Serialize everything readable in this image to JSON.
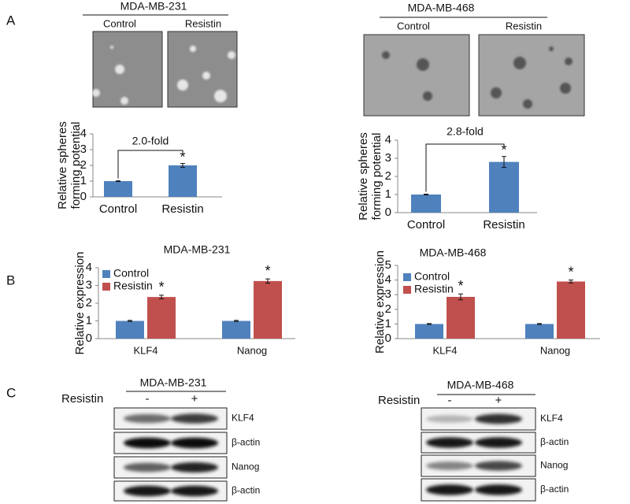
{
  "panel_letters": [
    "A",
    "B",
    "C"
  ],
  "panel_a": [
    {
      "title": "MDA-MB-231",
      "columns": [
        "Control",
        "Resistin"
      ]
    },
    {
      "title": "MDA-MB-468",
      "columns": [
        "Control",
        "Resistin"
      ]
    }
  ],
  "chart_data": [
    {
      "type": "bar",
      "y_label": [
        "Relative spheres",
        "forming potential"
      ],
      "categories": [
        "Control",
        "Resistin"
      ],
      "values": [
        1,
        2.0
      ],
      "errors": [
        0.02,
        0.12
      ],
      "color": "#4f81bd",
      "ylim": [
        0,
        4
      ],
      "yticks": [
        0,
        1,
        2,
        3,
        4
      ],
      "grid": false,
      "fold_label": "2.0-fold",
      "significance": "*"
    },
    {
      "type": "bar",
      "y_label": [
        "Relative spheres",
        "forming potential"
      ],
      "categories": [
        "Control",
        "Resistin"
      ],
      "values": [
        1,
        2.8
      ],
      "errors": [
        0.02,
        0.3
      ],
      "color": "#4f81bd",
      "ylim": [
        0,
        4
      ],
      "yticks": [
        0,
        1,
        2,
        3,
        4
      ],
      "grid": false,
      "fold_label": "2.8-fold",
      "significance": "*"
    },
    {
      "type": "grouped_bar",
      "title": "MDA-MB-231",
      "y_label": [
        "Relative expression"
      ],
      "categories": [
        "KLF4",
        "Nanog"
      ],
      "series": [
        {
          "name": "Control",
          "color": "#4f81bd",
          "values": [
            1,
            1
          ],
          "errors": [
            0.03,
            0.03
          ]
        },
        {
          "name": "Resistin",
          "color": "#c0504d",
          "values": [
            2.35,
            3.25
          ],
          "errors": [
            0.1,
            0.12
          ],
          "significance": [
            "*",
            "*"
          ]
        }
      ],
      "ylim": [
        0,
        4
      ],
      "yticks": [
        0,
        1,
        2,
        3,
        4
      ],
      "grid": false,
      "legend": "top-left"
    },
    {
      "type": "grouped_bar",
      "title": "MDA-MB-468",
      "y_label": [
        "Relative expression"
      ],
      "categories": [
        "KLF4",
        "Nanog"
      ],
      "series": [
        {
          "name": "Control",
          "color": "#4f81bd",
          "values": [
            1,
            1
          ],
          "errors": [
            0.03,
            0.03
          ]
        },
        {
          "name": "Resistin",
          "color": "#c0504d",
          "values": [
            2.85,
            3.9
          ],
          "errors": [
            0.2,
            0.1
          ],
          "significance": [
            "*",
            "*"
          ]
        }
      ],
      "ylim": [
        0,
        5
      ],
      "yticks": [
        0,
        1,
        2,
        3,
        4,
        5
      ],
      "grid": false,
      "legend": "top-left"
    }
  ],
  "blots": [
    {
      "title": "MDA-MB-231",
      "treatment": "Resistin",
      "lanes": [
        "-",
        "+"
      ],
      "rows": [
        "KLF4",
        "β-actin",
        "Nanog",
        "β-actin"
      ]
    },
    {
      "title": "MDA-MB-468",
      "treatment": "Resistin",
      "lanes": [
        "-",
        "+"
      ],
      "rows": [
        "KLF4",
        "β-actin",
        "Nanog",
        "β-actin"
      ]
    }
  ]
}
